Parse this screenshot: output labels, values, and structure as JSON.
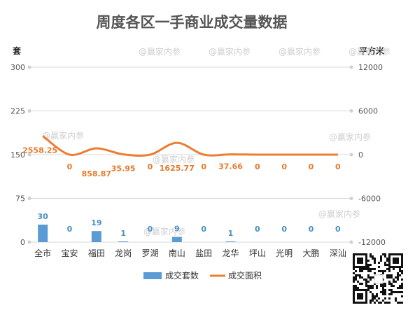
{
  "watermark": "@赢家内参",
  "legend": {
    "bars": "成交套数",
    "line": "成交面积"
  },
  "chart_data": {
    "type": "bar",
    "title": "周度各区一手商业成交量数据",
    "categories": [
      "全市",
      "宝安",
      "福田",
      "龙岗",
      "罗湖",
      "南山",
      "盐田",
      "龙华",
      "坪山",
      "光明",
      "大鹏",
      "深汕"
    ],
    "left_axis": {
      "label": "套",
      "min": 0,
      "max": 300,
      "ticks": [
        "0",
        "75",
        "150",
        "225",
        "300"
      ]
    },
    "right_axis": {
      "label": "平方米",
      "min": -12000,
      "max": 12000,
      "ticks": [
        "-12000",
        "-6000",
        "0",
        "6000",
        "12000"
      ]
    },
    "series": [
      {
        "name": "成交套数",
        "type": "bar",
        "axis": "left",
        "color": "#5b9bd5",
        "values": [
          30,
          0,
          19,
          1,
          0,
          9,
          0,
          1,
          0,
          0,
          0,
          0
        ],
        "labels": [
          "30",
          "0",
          "19",
          "1",
          "0",
          "9",
          "0",
          "1",
          "0",
          "0",
          "0",
          "0"
        ]
      },
      {
        "name": "成交面积",
        "type": "line",
        "axis": "right",
        "color": "#ed7d31",
        "values": [
          2558.25,
          0,
          858.87,
          35.95,
          0,
          1625.77,
          0,
          37.66,
          0,
          0,
          0,
          0
        ],
        "labels": [
          "2558.25",
          "0",
          "858.87",
          "35.95",
          "0",
          "1625.77",
          "0",
          "37.66",
          "0",
          "0",
          "0",
          "0"
        ]
      }
    ],
    "grid": true,
    "legend_position": "bottom"
  }
}
